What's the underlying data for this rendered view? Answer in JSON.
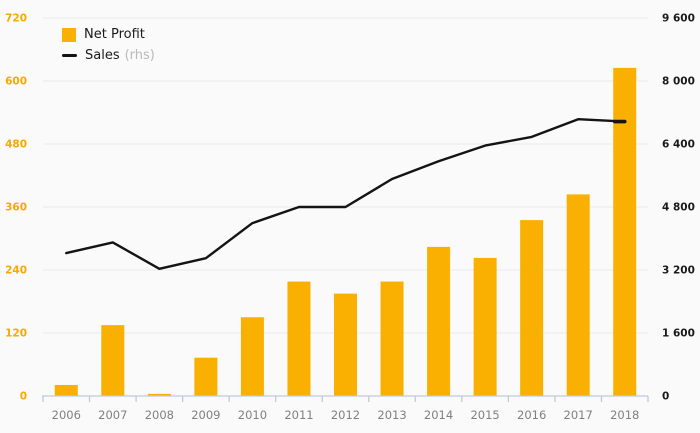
{
  "legend": {
    "net_profit": {
      "label": "Net Profit"
    },
    "sales": {
      "label": "Sales",
      "suffix": "(rhs)"
    }
  },
  "colors": {
    "bar": "#f9b000",
    "line": "#141414",
    "left_axis_text": "#f9a800",
    "right_axis_text": "#1a1a1a",
    "x_axis_text": "#808080",
    "gridline": "#e9e9e9",
    "baseline": "#bfc9de",
    "background": "#fafafa",
    "rhs_suffix_text": "#b9b9b9"
  },
  "chart_data": {
    "type": "bar",
    "title": "",
    "categories": [
      "2006",
      "2007",
      "2008",
      "2009",
      "2010",
      "2011",
      "2012",
      "2013",
      "2014",
      "2015",
      "2016",
      "2017",
      "2018"
    ],
    "series": [
      {
        "name": "Net Profit",
        "type": "bar",
        "axis": "left",
        "color": "#f9b000",
        "values": [
          21,
          135,
          4,
          73,
          150,
          218,
          195,
          218,
          284,
          263,
          335,
          384,
          625
        ]
      },
      {
        "name": "Sales",
        "type": "line",
        "axis": "right",
        "color": "#141414",
        "values": [
          3630,
          3900,
          3230,
          3500,
          4390,
          4800,
          4800,
          5510,
          5960,
          6360,
          6580,
          7030,
          6970
        ]
      }
    ],
    "left_axis": {
      "min": 0,
      "max": 720,
      "step": 120,
      "ticks": [
        "0",
        "120",
        "240",
        "360",
        "480",
        "600",
        "720"
      ]
    },
    "right_axis": {
      "min": 0,
      "max": 9600,
      "step": 1600,
      "ticks": [
        "0",
        "1 600",
        "3 200",
        "4 800",
        "6 400",
        "8 000",
        "9 600"
      ]
    },
    "legend_entries": [
      "Net Profit",
      "Sales (rhs)"
    ],
    "legend_position": "top-left",
    "grid": true,
    "xlabel": "",
    "ylabel": ""
  }
}
